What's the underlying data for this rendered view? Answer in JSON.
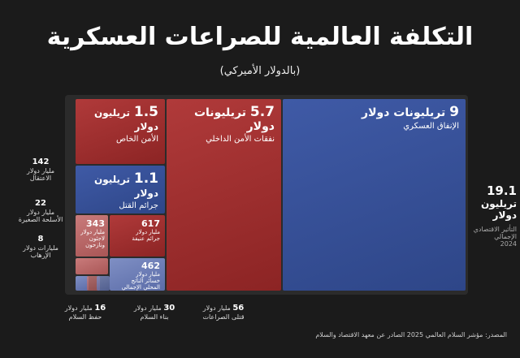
{
  "header": {
    "title": "التكلفة العالمية للصراعات العسكرية",
    "subtitle": "(بالدولار الأميركي)"
  },
  "boxes": [
    {
      "value": 9,
      "unit": "تريليونات دولار",
      "label": "الإنفاق العسكري"
    },
    {
      "value": 5.7,
      "unit": "تريليونات دولار",
      "label": "نفقات الأمن الداخلي"
    },
    {
      "value": 1.5,
      "unit": "تريليون دولار",
      "label": "الأمن الخاص"
    },
    {
      "value": 1.1,
      "unit": "تريليون دولار",
      "label": "جرائم القتل"
    },
    {
      "value": 617,
      "unit": "مليار دولار",
      "label": "جرائم عنيفة"
    },
    {
      "value": 343,
      "unit": "مليار دولار",
      "label": "لاجئون ونازحون"
    },
    {
      "value": 462,
      "unit": "مليار دولار",
      "label": "خسائر الناتج المحلي الإجمالي"
    }
  ],
  "side_labels": [
    {
      "value": 142,
      "unit": "مليار دولار",
      "label": "الاعتقال"
    },
    {
      "value": 22,
      "unit": "مليار دولار",
      "label": "الأسلحة الصغيرة"
    },
    {
      "value": 8,
      "unit": "مليارات دولار",
      "label": "الإرهاب"
    }
  ],
  "bottom_labels": [
    {
      "value": 16,
      "unit": "مليار دولار",
      "label": "حفظ السلام"
    },
    {
      "value": 30,
      "unit": "مليار دولار",
      "label": "بناء السلام"
    },
    {
      "value": 56,
      "unit": "مليار دولار",
      "label": "قتلى الصراعات"
    }
  ],
  "total": {
    "value": 19.1,
    "unit": "تريليون دولار",
    "label": "التأثير الاقتصادي الإجمالي",
    "year": 2024
  },
  "source": "المصدر: مؤشر السلام العالمي 2025 الصادر عن معهد الاقتصاد والسلام"
}
